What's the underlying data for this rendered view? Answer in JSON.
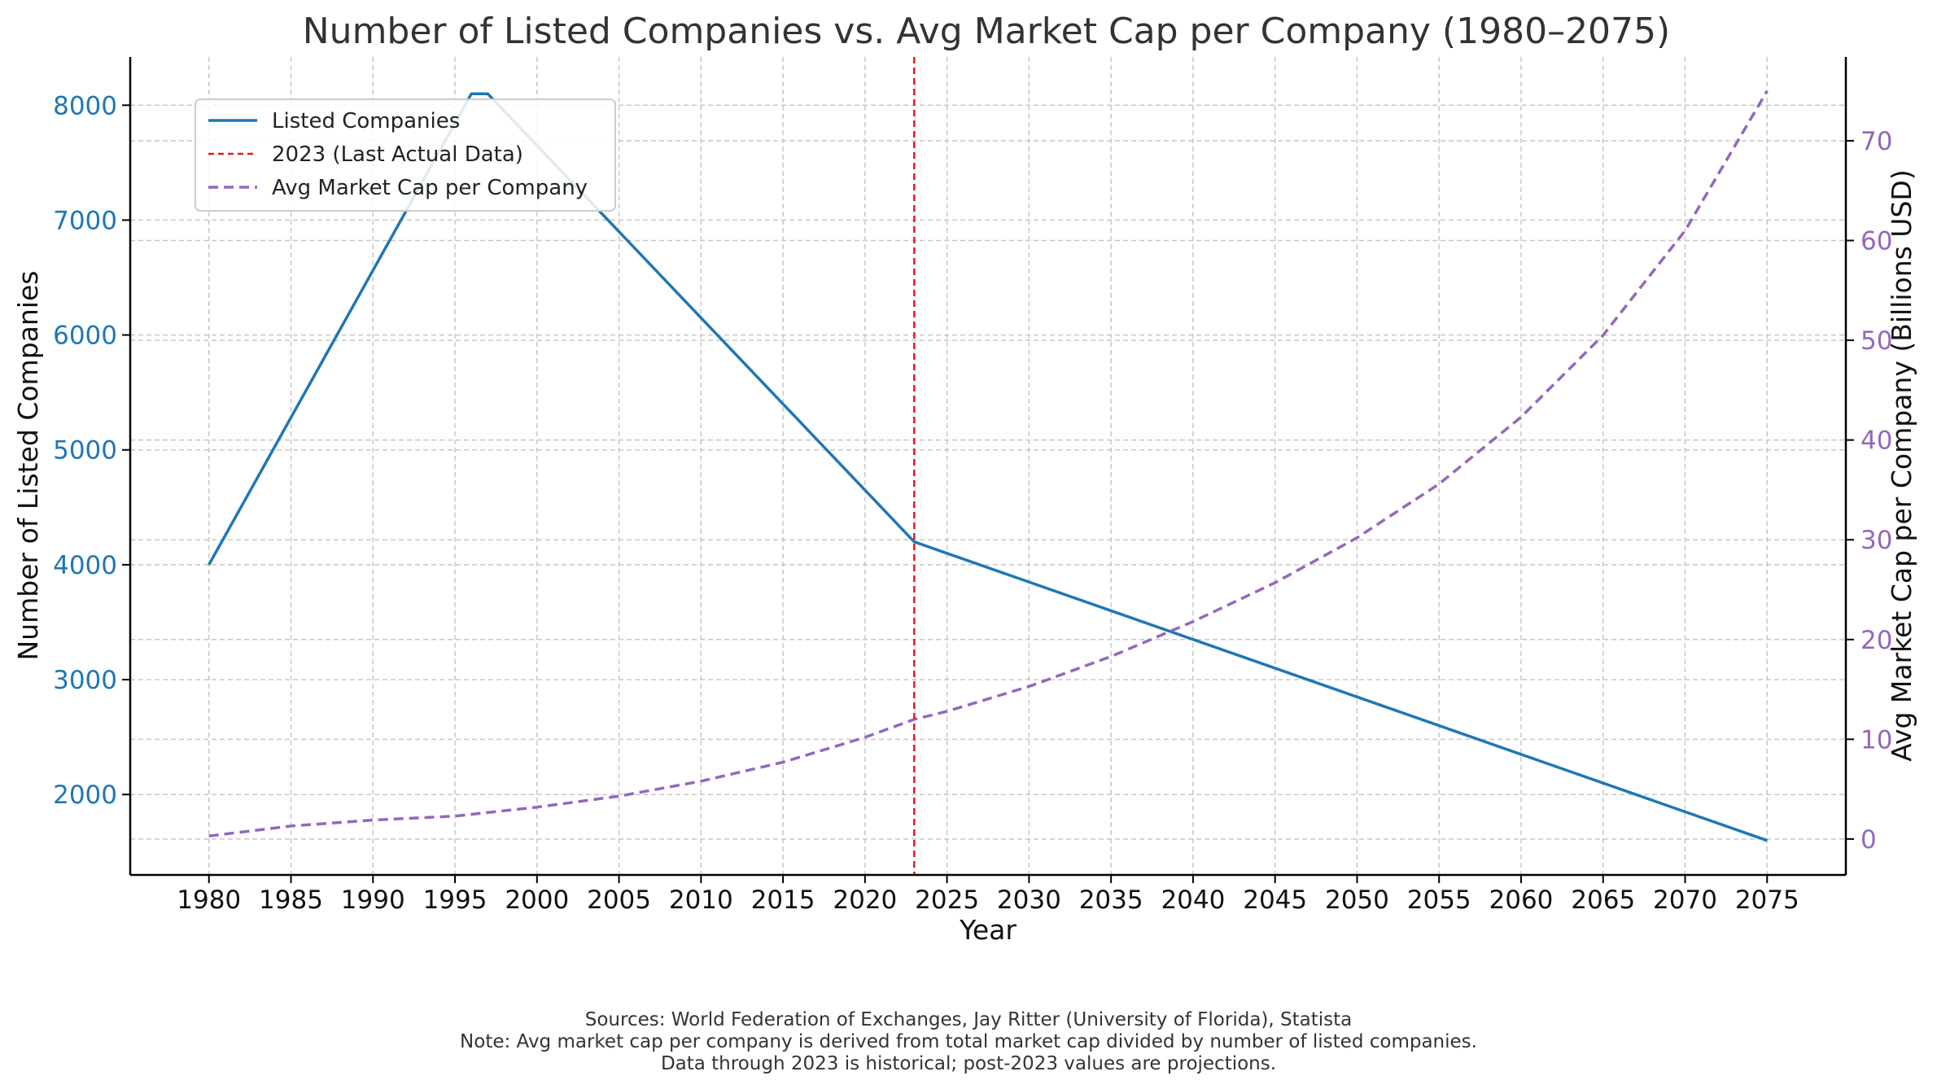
{
  "chart_data": {
    "type": "line",
    "title": "Number of Listed Companies vs. Avg Market Cap per Company (1980–2075)",
    "xlabel": "Year",
    "ylabel_left": "Number of Listed Companies",
    "ylabel_right": "Avg Market Cap per Company (Billions USD)",
    "xlim": [
      1975.2,
      2079.8
    ],
    "ylim_left": [
      1300,
      8420
    ],
    "ylim_right": [
      -3.6,
      78.4
    ],
    "x_ticks": [
      1980,
      1985,
      1990,
      1995,
      2000,
      2005,
      2010,
      2015,
      2020,
      2025,
      2030,
      2035,
      2040,
      2045,
      2050,
      2055,
      2060,
      2065,
      2070,
      2075
    ],
    "y_ticks_left": [
      2000,
      3000,
      4000,
      5000,
      6000,
      7000,
      8000
    ],
    "y_ticks_right": [
      0,
      10,
      20,
      30,
      40,
      50,
      60,
      70
    ],
    "grid": true,
    "legend_position": "top-left",
    "series": [
      {
        "name": "Listed Companies",
        "axis": "left",
        "color": "#1f77b4",
        "style": "solid",
        "x": [
          1980,
          1996,
          1997,
          2023,
          2075
        ],
        "y": [
          4000,
          8100,
          8100,
          4200,
          1600
        ]
      },
      {
        "name": "Avg Market Cap per Company",
        "axis": "right",
        "color": "#9467bd",
        "style": "dashed",
        "x": [
          1980,
          1985,
          1990,
          1995,
          2000,
          2005,
          2010,
          2015,
          2020,
          2023,
          2025,
          2030,
          2035,
          2040,
          2045,
          2050,
          2055,
          2060,
          2065,
          2070,
          2075
        ],
        "y": [
          0.3,
          1.3,
          1.9,
          2.3,
          3.2,
          4.3,
          5.8,
          7.7,
          10.2,
          12.0,
          12.8,
          15.3,
          18.3,
          21.8,
          25.7,
          30.2,
          35.6,
          42.3,
          50.5,
          61.0,
          75.0
        ]
      }
    ],
    "vlines": [
      {
        "name": "2023 (Last Actual Data)",
        "x": 2023,
        "color": "#e41a1c",
        "style": "dashed"
      }
    ],
    "legend": [
      "Listed Companies",
      "2023 (Last Actual Data)",
      "Avg Market Cap per Company"
    ]
  },
  "footer": {
    "line1": "Sources: World Federation of Exchanges, Jay Ritter (University of Florida), Statista",
    "line2": "Note: Avg market cap per company is derived from total market cap divided by number of listed companies.",
    "line3": "Data through 2023 is historical; post-2023 values are projections."
  }
}
